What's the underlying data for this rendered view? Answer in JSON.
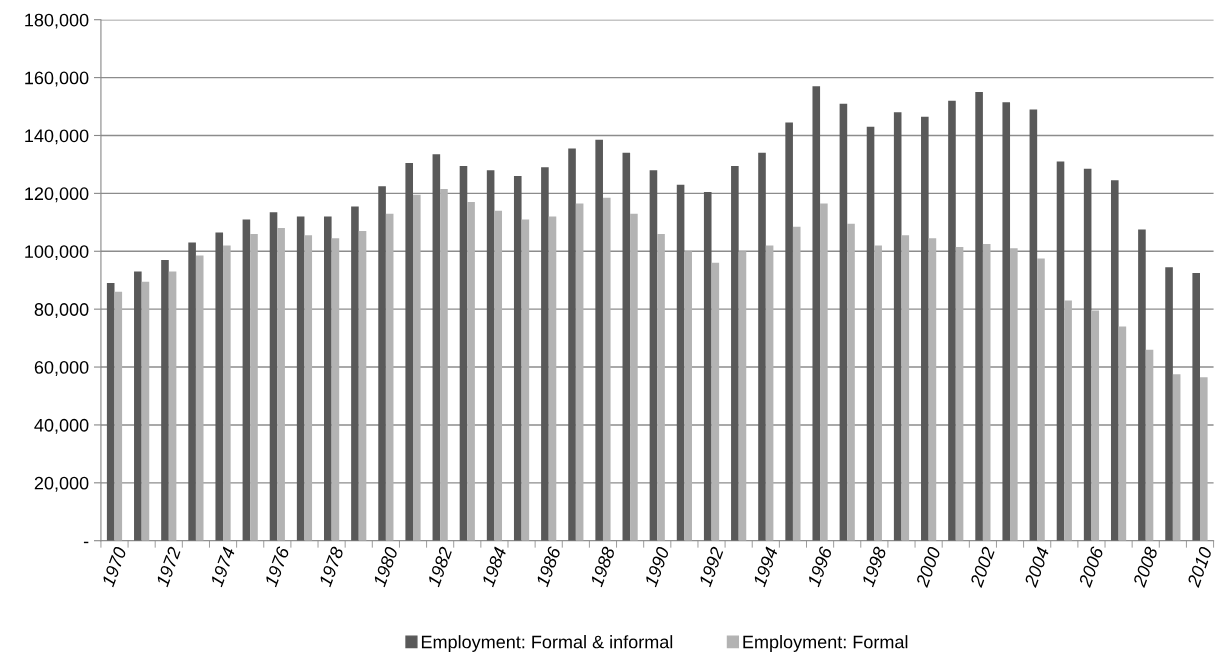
{
  "chart_data": {
    "type": "bar",
    "categories": [
      "1970",
      null,
      "1972",
      null,
      "1974",
      null,
      "1976",
      null,
      "1978",
      null,
      "1980",
      null,
      "1982",
      null,
      "1984",
      null,
      "1986",
      null,
      "1988",
      null,
      "1990",
      null,
      "1992",
      null,
      "1994",
      null,
      "1996",
      null,
      "1998",
      null,
      "2000",
      null,
      "2002",
      null,
      "2004",
      null,
      "2006",
      null,
      "2008",
      null,
      "2010"
    ],
    "series": [
      {
        "name": "Employment: Formal & informal",
        "color": "#595959",
        "values": [
          89000,
          93000,
          97000,
          103000,
          106500,
          111000,
          113500,
          112000,
          112000,
          115500,
          122500,
          130500,
          133500,
          129500,
          128000,
          126000,
          129000,
          135500,
          138500,
          134000,
          128000,
          123000,
          120500,
          129500,
          134000,
          144500,
          157000,
          151000,
          143000,
          148000,
          146500,
          152000,
          155000,
          151500,
          149000,
          131000,
          128500,
          124500,
          107500,
          94500,
          92500
        ]
      },
      {
        "name": "Employment: Formal",
        "color": "#b3b3b3",
        "values": [
          86000,
          89500,
          93000,
          98500,
          102000,
          106000,
          108000,
          105500,
          104500,
          107000,
          113000,
          119500,
          121500,
          117000,
          114000,
          111000,
          112000,
          116500,
          118500,
          113000,
          106000,
          100000,
          96000,
          100000,
          102000,
          108500,
          116500,
          109500,
          102000,
          105500,
          104500,
          101500,
          102500,
          101000,
          97500,
          83000,
          79500,
          74000,
          66000,
          57500,
          56500
        ]
      }
    ],
    "ylim": [
      0,
      180000
    ],
    "yticks": [
      {
        "value": 0,
        "label": "-"
      },
      {
        "value": 20000,
        "label": "20,000"
      },
      {
        "value": 40000,
        "label": "40,000"
      },
      {
        "value": 60000,
        "label": "60,000"
      },
      {
        "value": 80000,
        "label": "80,000"
      },
      {
        "value": 100000,
        "label": "100,000"
      },
      {
        "value": 120000,
        "label": "120,000"
      },
      {
        "value": 140000,
        "label": "140,000"
      },
      {
        "value": 160000,
        "label": "160,000"
      },
      {
        "value": 180000,
        "label": "180,000"
      }
    ],
    "grid": "y",
    "legend": "bottom"
  }
}
